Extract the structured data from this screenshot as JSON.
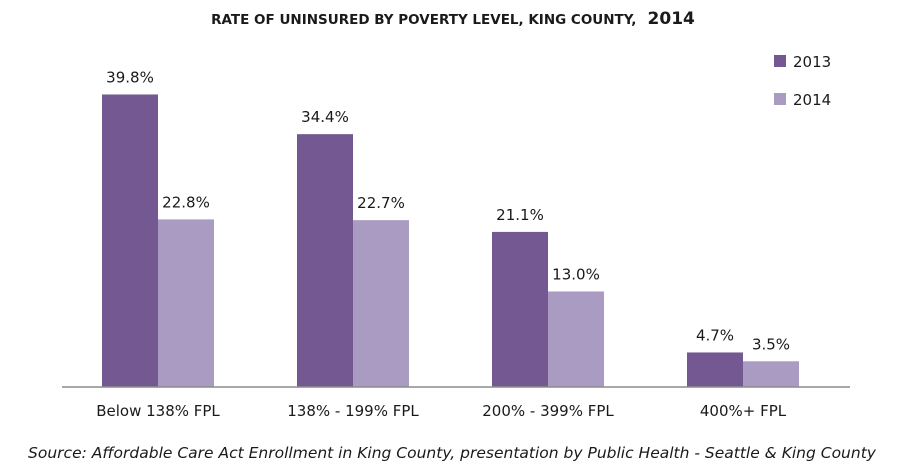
{
  "chart_data": {
    "type": "bar",
    "title": "RATE OF UNINSURED BY POVERTY LEVEL, KING COUNTY,",
    "title_year": "2014",
    "categories": [
      "Below 138% FPL",
      "138% - 199% FPL",
      "200% - 399% FPL",
      "400%+ FPL"
    ],
    "series": [
      {
        "name": "2013",
        "color": "#735891",
        "values": [
          39.8,
          34.4,
          21.1,
          4.7
        ],
        "labels": [
          "39.8%",
          "34.4%",
          "21.1%",
          "4.7%"
        ]
      },
      {
        "name": "2014",
        "color": "#a99bc1",
        "values": [
          22.8,
          22.7,
          13.0,
          3.5
        ],
        "labels": [
          "22.8%",
          "22.7%",
          "13.0%",
          "3.5%"
        ]
      }
    ],
    "ylim": [
      0,
      40
    ],
    "xlabel": "",
    "ylabel": "",
    "grid": false,
    "legend": "top-right",
    "source": "Source: Affordable Care Act Enrollment in King County, presentation by Public Health - Seattle & King County"
  }
}
